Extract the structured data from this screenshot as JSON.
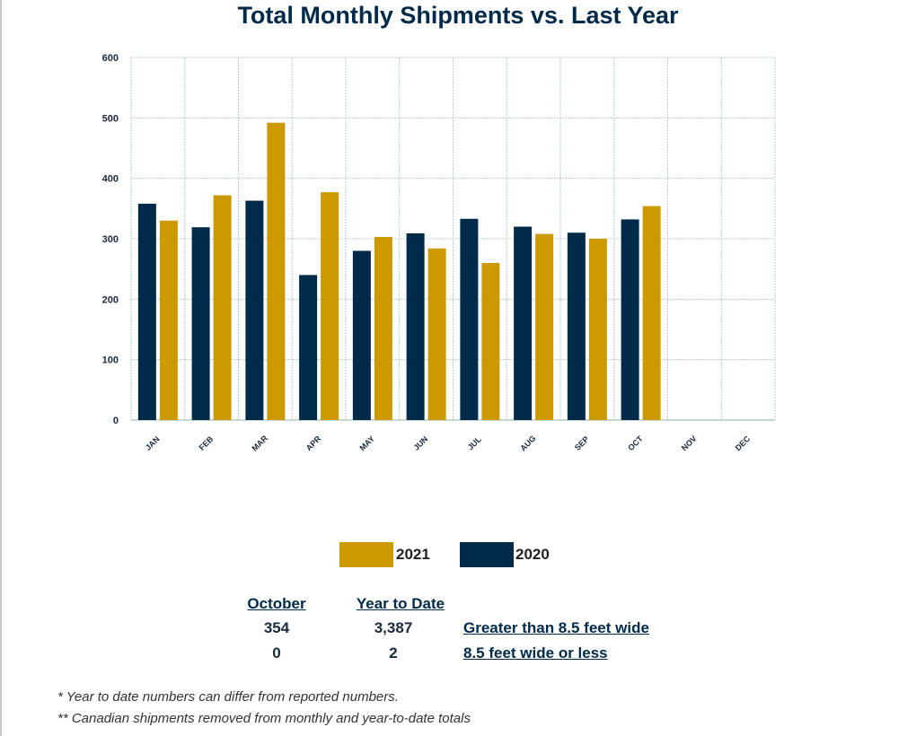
{
  "title": "Total Monthly Shipments vs. Last Year",
  "colors": {
    "y2021": "#cc9900",
    "y2020": "#002a4a",
    "grid": "#b9d0cc",
    "axis": "#8fb3ac"
  },
  "chart_data": {
    "type": "bar",
    "title": "Total Monthly Shipments vs. Last Year",
    "categories": [
      "JAN",
      "FEB",
      "MAR",
      "APR",
      "MAY",
      "JUN",
      "JUL",
      "AUG",
      "SEP",
      "OCT",
      "NOV",
      "DEC"
    ],
    "series": [
      {
        "name": "2020",
        "values": [
          358,
          319,
          363,
          240,
          280,
          309,
          333,
          320,
          310,
          332,
          null,
          null
        ]
      },
      {
        "name": "2021",
        "values": [
          330,
          372,
          492,
          377,
          303,
          284,
          260,
          308,
          300,
          354,
          null,
          null
        ]
      }
    ],
    "yticks": [
      0,
      100,
      200,
      300,
      400,
      500,
      600
    ],
    "ylim": [
      0,
      600
    ],
    "grid": true,
    "legend": "bottom-center",
    "xlabel": "",
    "ylabel": ""
  },
  "legend": {
    "item_2021": "2021",
    "item_2020": "2020"
  },
  "stats": {
    "col1_header": "October",
    "col2_header": "Year to Date",
    "rows": [
      {
        "month": "354",
        "ytd": "3,387",
        "label": "Greater than 8.5 feet wide"
      },
      {
        "month": "0",
        "ytd": "2",
        "label": "8.5 feet wide or less"
      }
    ]
  },
  "footnotes": [
    "* Year to date numbers can differ from reported numbers.",
    "** Canadian shipments removed from monthly and year-to-date totals"
  ]
}
